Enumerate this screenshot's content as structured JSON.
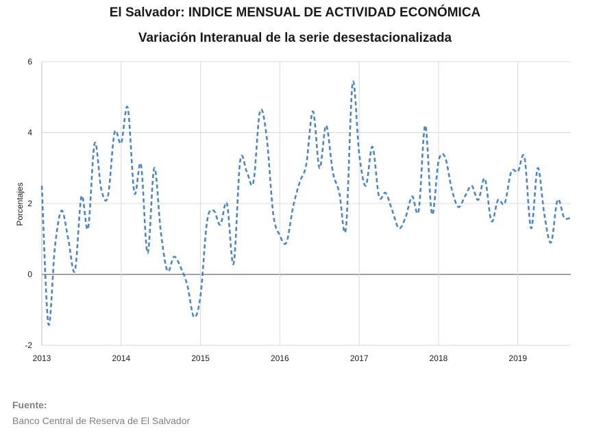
{
  "title": "El Salvador: INDICE MENSUAL DE ACTIVIDAD ECONÓMICA",
  "subtitle": "Variación Interanual de la serie desestacionalizada",
  "source_label": "Fuente:",
  "source_text": "Banco Central de Reserva de El Salvador",
  "chart_data": {
    "type": "line",
    "title": "El Salvador: INDICE MENSUAL DE ACTIVIDAD ECONÓMICA",
    "subtitle": "Variación Interanual de la serie desestacionalizada",
    "xlabel": "",
    "ylabel": "Porcentajes",
    "xlim": [
      2013,
      2019.67
    ],
    "ylim": [
      -2,
      6
    ],
    "yticks": [
      -2,
      0,
      2,
      4,
      6
    ],
    "xticks": [
      2013,
      2014,
      2015,
      2016,
      2017,
      2018,
      2019
    ],
    "xtick_labels": [
      "2013",
      "2014",
      "2015",
      "2016",
      "2017",
      "2018",
      "2019"
    ],
    "grid": true,
    "line_style": "dashed",
    "color": "#4a86c8",
    "series": [
      {
        "x": [
          2013.0,
          2013.083,
          2013.167,
          2013.25,
          2013.333,
          2013.417,
          2013.5,
          2013.583,
          2013.667,
          2013.75,
          2013.833,
          2013.917,
          2014.0,
          2014.083,
          2014.167,
          2014.25,
          2014.333,
          2014.417,
          2014.5,
          2014.583,
          2014.667,
          2014.75,
          2014.833,
          2014.917,
          2015.0,
          2015.083,
          2015.167,
          2015.25,
          2015.333,
          2015.417,
          2015.5,
          2015.583,
          2015.667,
          2015.75,
          2015.833,
          2015.917,
          2016.0,
          2016.083,
          2016.167,
          2016.25,
          2016.333,
          2016.417,
          2016.5,
          2016.583,
          2016.667,
          2016.75,
          2016.833,
          2016.917,
          2017.0,
          2017.083,
          2017.167,
          2017.25,
          2017.333,
          2017.417,
          2017.5,
          2017.583,
          2017.667,
          2017.75,
          2017.833,
          2017.917,
          2018.0,
          2018.083,
          2018.167,
          2018.25,
          2018.333,
          2018.417,
          2018.5,
          2018.583,
          2018.667,
          2018.75,
          2018.833,
          2018.917,
          2019.0,
          2019.083,
          2019.167,
          2019.25,
          2019.333,
          2019.417,
          2019.5,
          2019.583,
          2019.667
        ],
        "values": [
          2.5,
          -1.4,
          0.8,
          1.8,
          1.0,
          0.1,
          2.2,
          1.3,
          3.7,
          2.4,
          2.2,
          4.0,
          3.7,
          4.7,
          2.3,
          3.1,
          0.6,
          3.0,
          1.2,
          0.1,
          0.5,
          0.2,
          -0.3,
          -1.2,
          -0.6,
          1.5,
          1.8,
          1.4,
          2.0,
          0.3,
          3.2,
          2.9,
          2.6,
          4.6,
          3.9,
          1.7,
          1.1,
          0.9,
          1.9,
          2.6,
          3.1,
          4.6,
          3.0,
          4.2,
          2.9,
          2.3,
          1.3,
          5.4,
          3.4,
          2.5,
          3.6,
          2.2,
          2.3,
          1.8,
          1.3,
          1.6,
          2.2,
          1.8,
          4.2,
          1.7,
          3.2,
          3.3,
          2.4,
          1.9,
          2.2,
          2.5,
          2.1,
          2.7,
          1.5,
          2.1,
          2.0,
          2.9,
          2.9,
          3.3,
          1.3,
          3.0,
          1.7,
          0.9,
          2.1,
          1.6,
          1.6
        ]
      }
    ]
  }
}
